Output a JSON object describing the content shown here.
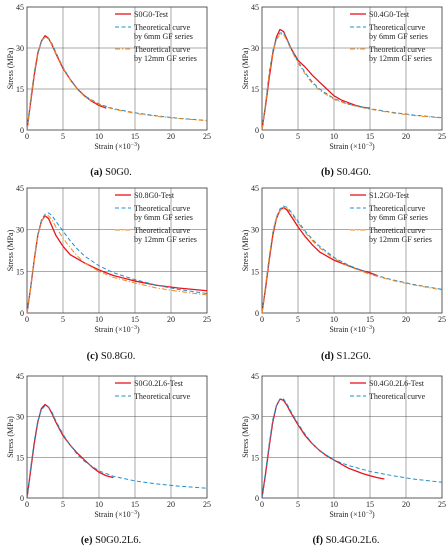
{
  "chart_data": [
    {
      "type": "line",
      "caption_letter": "(a)",
      "caption_text": "S0G0.",
      "xlabel": "Strain (×10",
      "xlabel_exp": "−3",
      "xlabel_close": ")",
      "ylabel": "Stress (MPa)",
      "xlim": [
        0,
        25
      ],
      "ylim": [
        0,
        45
      ],
      "xticks": [
        0,
        5,
        10,
        15,
        20,
        25
      ],
      "yticks": [
        0,
        15,
        30,
        45
      ],
      "grid": true,
      "legend": "top-right",
      "series": [
        {
          "name": "S0G0-Test",
          "style": "solid",
          "color": "#e8141c",
          "x": [
            0,
            0.5,
            1.0,
            1.5,
            2.0,
            2.5,
            3.0,
            3.5,
            4.0,
            5.0,
            6.0,
            7.0,
            8.0,
            9.0,
            10.0,
            11.0
          ],
          "y": [
            0,
            10,
            20,
            28,
            32.5,
            34.5,
            33.5,
            31,
            28,
            22.5,
            18.5,
            15,
            12.5,
            10.5,
            9,
            8
          ]
        },
        {
          "name": "Theoretical curve\nby 6mm GF series",
          "style": "dash",
          "color": "#1f8fcf",
          "x": [
            0,
            0.5,
            1.0,
            1.5,
            2.0,
            2.5,
            3.0,
            3.5,
            4.0,
            5.0,
            6.0,
            7.0,
            8.0,
            10.0,
            12.0,
            15.0,
            18.0,
            21.0,
            25.0
          ],
          "y": [
            0,
            11,
            21,
            28.5,
            32.5,
            34,
            33.5,
            31.5,
            28.5,
            23,
            18.5,
            15,
            12.5,
            9.5,
            7.8,
            6.3,
            5.2,
            4.3,
            3.5
          ]
        },
        {
          "name": "Theoretical curve\nby 12mm GF series",
          "style": "dashdot",
          "color": "#f08a1c",
          "x": [
            0,
            0.5,
            1.0,
            1.5,
            2.0,
            2.5,
            3.0,
            3.5,
            4.0,
            5.0,
            6.0,
            7.0,
            8.0,
            10.0,
            12.0,
            15.0,
            18.0,
            21.0,
            25.0
          ],
          "y": [
            0,
            11,
            21,
            28.5,
            32.5,
            34,
            33.3,
            31.2,
            28.2,
            22.8,
            18.3,
            14.8,
            12.2,
            9.3,
            7.6,
            6.1,
            5.0,
            4.2,
            3.4
          ]
        }
      ]
    },
    {
      "type": "line",
      "caption_letter": "(b)",
      "caption_text": "S0.4G0.",
      "xlabel": "Strain (×10",
      "xlabel_exp": "−3",
      "xlabel_close": ")",
      "ylabel": "Stress (MPa)",
      "xlim": [
        0,
        25
      ],
      "ylim": [
        0,
        45
      ],
      "xticks": [
        0,
        5,
        10,
        15,
        20,
        25
      ],
      "yticks": [
        0,
        15,
        30,
        45
      ],
      "grid": true,
      "legend": "top-right",
      "series": [
        {
          "name": "S0.4G0-Test",
          "style": "solid",
          "color": "#e8141c",
          "x": [
            0,
            0.5,
            1.0,
            1.5,
            2.0,
            2.5,
            3.0,
            3.5,
            4.0,
            5.0,
            6.0,
            7.0,
            8.0,
            9.0,
            10.0,
            11.0,
            12.0,
            13.0,
            14.0,
            15.0
          ],
          "y": [
            0,
            9,
            19,
            28,
            34,
            36.8,
            36,
            33,
            30,
            25.5,
            23,
            20,
            17.5,
            15,
            12.5,
            11,
            10,
            9,
            8.3,
            8
          ]
        },
        {
          "name": "Theoretical curve\nby 6mm GF series",
          "style": "dash",
          "color": "#1f8fcf",
          "x": [
            0,
            0.5,
            1.0,
            1.5,
            2.0,
            2.5,
            3.0,
            3.5,
            4.0,
            5.0,
            6.0,
            7.0,
            8.0,
            10.0,
            12.0,
            15.0,
            18.0,
            21.0,
            25.0
          ],
          "y": [
            0,
            10,
            21,
            29,
            33.5,
            35.5,
            35.5,
            33,
            30,
            25,
            21,
            17.5,
            15,
            11.5,
            9.5,
            7.8,
            6.5,
            5.5,
            4.5
          ]
        },
        {
          "name": "Theoretical curve\nby 12mm GF series",
          "style": "dashdot",
          "color": "#f08a1c",
          "x": [
            0,
            0.5,
            1.0,
            1.5,
            2.0,
            2.5,
            3.0,
            3.5,
            4.0,
            5.0,
            6.0,
            7.0,
            8.0,
            10.0,
            12.0,
            15.0,
            18.0,
            21.0,
            25.0
          ],
          "y": [
            0,
            10,
            20.5,
            28.5,
            33,
            35,
            35,
            32.5,
            29.5,
            24.5,
            20.5,
            17,
            14.5,
            11.2,
            9.3,
            7.6,
            6.3,
            5.3,
            4.4
          ]
        }
      ]
    },
    {
      "type": "line",
      "caption_letter": "(c)",
      "caption_text": "S0.8G0.",
      "xlabel": "Strain (×10",
      "xlabel_exp": "−3",
      "xlabel_close": ")",
      "ylabel": "Stress (MPa)",
      "xlim": [
        0,
        25
      ],
      "ylim": [
        0,
        45
      ],
      "xticks": [
        0,
        5,
        10,
        15,
        20,
        25
      ],
      "yticks": [
        0,
        15,
        30,
        45
      ],
      "grid": true,
      "legend": "top-right",
      "series": [
        {
          "name": "S0.8G0-Test",
          "style": "solid",
          "color": "#e8141c",
          "x": [
            0,
            0.5,
            1.0,
            1.5,
            2.0,
            2.5,
            3.0,
            3.5,
            4.0,
            5.0,
            6.0,
            7.0,
            8.0,
            10.0,
            12.0,
            15.0,
            18.0,
            21.0,
            25.0
          ],
          "y": [
            0,
            9,
            19,
            28,
            33,
            35,
            34,
            31,
            28,
            24,
            21,
            19.5,
            18,
            15.5,
            13.5,
            11.5,
            10,
            9,
            8
          ]
        },
        {
          "name": "Theoretical curve\nby 6mm GF series",
          "style": "dash",
          "color": "#1f8fcf",
          "x": [
            0,
            0.5,
            1.0,
            1.5,
            2.0,
            2.5,
            3.0,
            3.5,
            4.0,
            5.0,
            6.0,
            7.0,
            8.0,
            10.0,
            12.0,
            15.0,
            18.0,
            21.0,
            25.0
          ],
          "y": [
            0,
            9,
            19,
            28,
            33.5,
            35.5,
            36,
            35,
            33,
            29.5,
            26,
            23,
            20.5,
            17,
            14.5,
            12,
            10,
            8.5,
            7
          ]
        },
        {
          "name": "Theoretical curve\nby 12mm GF series",
          "style": "dashdot",
          "color": "#f08a1c",
          "x": [
            0,
            0.5,
            1.0,
            1.5,
            2.0,
            2.5,
            3.0,
            3.5,
            4.0,
            5.0,
            6.0,
            7.0,
            8.0,
            10.0,
            12.0,
            15.0,
            18.0,
            21.0,
            25.0
          ],
          "y": [
            0,
            9,
            19,
            28,
            33,
            35,
            35,
            33.5,
            31,
            27,
            23.5,
            20.5,
            18,
            15,
            12.8,
            10.8,
            9,
            7.8,
            6.5
          ]
        }
      ]
    },
    {
      "type": "line",
      "caption_letter": "(d)",
      "caption_text": "S1.2G0.",
      "xlabel": "Strain (×10",
      "xlabel_exp": "−3",
      "xlabel_close": ")",
      "ylabel": "Stress (MPa)",
      "xlim": [
        0,
        25
      ],
      "ylim": [
        0,
        45
      ],
      "xticks": [
        0,
        5,
        10,
        15,
        20,
        25
      ],
      "yticks": [
        0,
        15,
        30,
        45
      ],
      "grid": true,
      "legend": "top-right",
      "series": [
        {
          "name": "S1.2G0-Test",
          "style": "solid",
          "color": "#e8141c",
          "x": [
            0,
            0.5,
            1.0,
            1.5,
            2.0,
            2.5,
            3.0,
            3.5,
            4.0,
            5.0,
            6.0,
            7.0,
            8.0,
            9.0,
            10.0,
            11.0,
            12.0,
            13.0,
            14.0,
            15.0,
            16.0
          ],
          "y": [
            0,
            9,
            19,
            28,
            34,
            37,
            38,
            37,
            35,
            31,
            27.5,
            24.5,
            22,
            20.5,
            19,
            18,
            17,
            16,
            15.2,
            14.5,
            13.5
          ]
        },
        {
          "name": "Theoretical curve\nby 6mm GF series",
          "style": "dash",
          "color": "#1f8fcf",
          "x": [
            0,
            0.5,
            1.0,
            1.5,
            2.0,
            2.5,
            3.0,
            3.5,
            4.0,
            5.0,
            6.0,
            7.0,
            8.0,
            10.0,
            12.0,
            15.0,
            18.0,
            21.0,
            25.0
          ],
          "y": [
            0,
            10,
            20,
            29,
            34.5,
            37.5,
            38.5,
            38,
            36.5,
            33,
            29.5,
            26.5,
            24,
            20,
            17.2,
            14.2,
            12,
            10.3,
            8.5
          ]
        },
        {
          "name": "Theoretical curve\nby 12mm GF series",
          "style": "dashdot",
          "color": "#f08a1c",
          "x": [
            0,
            0.5,
            1.0,
            1.5,
            2.0,
            2.5,
            3.0,
            3.5,
            4.0,
            5.0,
            6.0,
            7.0,
            8.0,
            10.0,
            12.0,
            15.0,
            18.0,
            21.0,
            25.0
          ],
          "y": [
            0,
            10,
            20,
            29,
            34.2,
            37,
            38,
            37.5,
            36,
            32.5,
            29,
            26,
            23.5,
            19.6,
            16.8,
            13.9,
            11.8,
            10.1,
            8.3
          ]
        }
      ]
    },
    {
      "type": "line",
      "caption_letter": "(e)",
      "caption_text": "S0G0.2L6.",
      "xlabel": "Strain (×10",
      "xlabel_exp": "−3",
      "xlabel_close": ")",
      "ylabel": "Stress (MPa)",
      "xlim": [
        0,
        25
      ],
      "ylim": [
        0,
        45
      ],
      "xticks": [
        0,
        5,
        10,
        15,
        20,
        25
      ],
      "yticks": [
        0,
        15,
        30,
        45
      ],
      "grid": true,
      "legend": "top-right",
      "series": [
        {
          "name": "S0G0.2L6-Test",
          "style": "solid",
          "color": "#e8141c",
          "x": [
            0,
            0.5,
            1.0,
            1.5,
            2.0,
            2.5,
            3.0,
            3.5,
            4.0,
            5.0,
            6.0,
            7.0,
            8.0,
            9.0,
            10.0,
            11.0,
            12.0
          ],
          "y": [
            0,
            10,
            20,
            28,
            33,
            34.5,
            33.5,
            31,
            28,
            23,
            19.5,
            16.5,
            14,
            11.5,
            9.5,
            8.2,
            7.5
          ]
        },
        {
          "name": "Theoretical curve",
          "style": "dash",
          "color": "#1f8fcf",
          "x": [
            0,
            0.5,
            1.0,
            1.5,
            2.0,
            2.5,
            3.0,
            3.5,
            4.0,
            5.0,
            6.0,
            7.0,
            8.0,
            10.0,
            12.0,
            15.0,
            18.0,
            21.0,
            25.0
          ],
          "y": [
            0,
            11,
            21,
            28.5,
            32.5,
            34,
            33.5,
            31.5,
            28.5,
            23.5,
            19.5,
            16,
            13.5,
            10,
            8,
            6.3,
            5.2,
            4.4,
            3.6
          ]
        }
      ]
    },
    {
      "type": "line",
      "caption_letter": "(f)",
      "caption_text": "S0.4G0.2L6.",
      "xlabel": "Strain (×10",
      "xlabel_exp": "−3",
      "xlabel_close": ")",
      "ylabel": "Stress (MPa)",
      "xlim": [
        0,
        25
      ],
      "ylim": [
        0,
        45
      ],
      "xticks": [
        0,
        5,
        10,
        15,
        20,
        25
      ],
      "yticks": [
        0,
        15,
        30,
        45
      ],
      "grid": true,
      "legend": "top-right",
      "series": [
        {
          "name": "S0.4G0.2L6-Test",
          "style": "solid",
          "color": "#e8141c",
          "x": [
            0,
            0.5,
            1.0,
            1.5,
            2.0,
            2.5,
            3.0,
            3.5,
            4.0,
            5.0,
            6.0,
            7.0,
            8.0,
            9.0,
            10.0,
            11.0,
            12.0,
            13.0,
            14.0,
            15.0,
            16.0,
            17.0
          ],
          "y": [
            0,
            9,
            19,
            28,
            34,
            36.5,
            36,
            34,
            31.5,
            27,
            23,
            20,
            17.5,
            15.5,
            14,
            12.5,
            11,
            10,
            9,
            8.2,
            7.5,
            7
          ]
        },
        {
          "name": "Theoretical curve",
          "style": "dash",
          "color": "#1f8fcf",
          "x": [
            0,
            0.5,
            1.0,
            1.5,
            2.0,
            2.5,
            3.0,
            3.5,
            4.0,
            5.0,
            6.0,
            7.0,
            8.0,
            10.0,
            12.0,
            15.0,
            18.0,
            21.0,
            25.0
          ],
          "y": [
            0,
            10,
            20,
            29,
            34,
            36.5,
            36.5,
            34.5,
            32,
            27.5,
            23.5,
            20,
            17.5,
            14,
            12,
            9.8,
            8.3,
            7,
            5.8
          ]
        }
      ]
    }
  ]
}
